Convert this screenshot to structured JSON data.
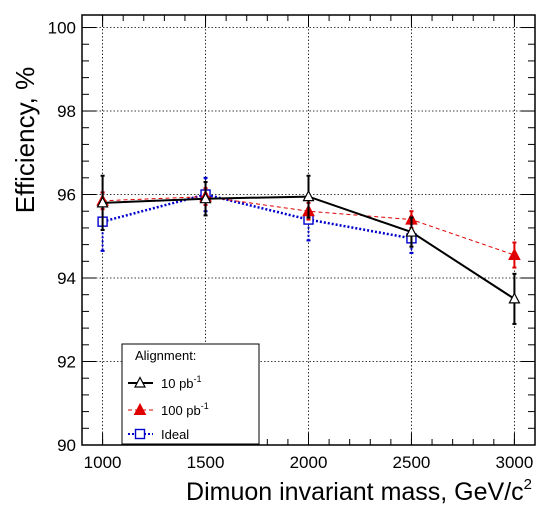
{
  "chart_data": {
    "type": "line",
    "title": "",
    "xlabel": "Dimuon invariant mass, GeV/c",
    "xlabel_superscript": "2",
    "ylabel": "Efficiency, %",
    "xlim": [
      900,
      3100
    ],
    "ylim": [
      90,
      100.3
    ],
    "xticks": [
      1000,
      1500,
      2000,
      2500,
      3000
    ],
    "yticks": [
      90,
      92,
      94,
      96,
      98,
      100
    ],
    "grid": true,
    "legend": {
      "placement": "bottom-left",
      "title": "Alignment:",
      "entries": [
        {
          "text": "10 pb",
          "sup": "-1"
        },
        {
          "text": "100 pb",
          "sup": "-1"
        },
        {
          "text": "Ideal",
          "sup": ""
        }
      ]
    },
    "series": [
      {
        "name": "10 pb-1",
        "color": "#000000",
        "marker": "open-triangle",
        "line": "solid",
        "x": [
          1000,
          1500,
          2000,
          2500,
          3000
        ],
        "y": [
          95.8,
          95.9,
          95.95,
          95.1,
          93.5
        ],
        "err": [
          0.65,
          0.4,
          0.5,
          0.35,
          0.6
        ]
      },
      {
        "name": "100 pb-1",
        "color": "#e00000",
        "marker": "filled-triangle",
        "line": "dashed",
        "x": [
          1000,
          1500,
          2000,
          2500,
          3000
        ],
        "y": [
          95.85,
          95.95,
          95.6,
          95.4,
          94.55
        ],
        "err": [
          0.2,
          0.2,
          0.2,
          0.2,
          0.3
        ]
      },
      {
        "name": "Ideal",
        "color": "#0000cc",
        "marker": "open-square",
        "line": "dotted",
        "x": [
          1000,
          1500,
          2000,
          2500,
          3000
        ],
        "y": [
          95.35,
          96.0,
          95.4,
          94.95,
          null
        ],
        "err": [
          0.7,
          0.4,
          0.5,
          0.35,
          null
        ]
      }
    ]
  }
}
